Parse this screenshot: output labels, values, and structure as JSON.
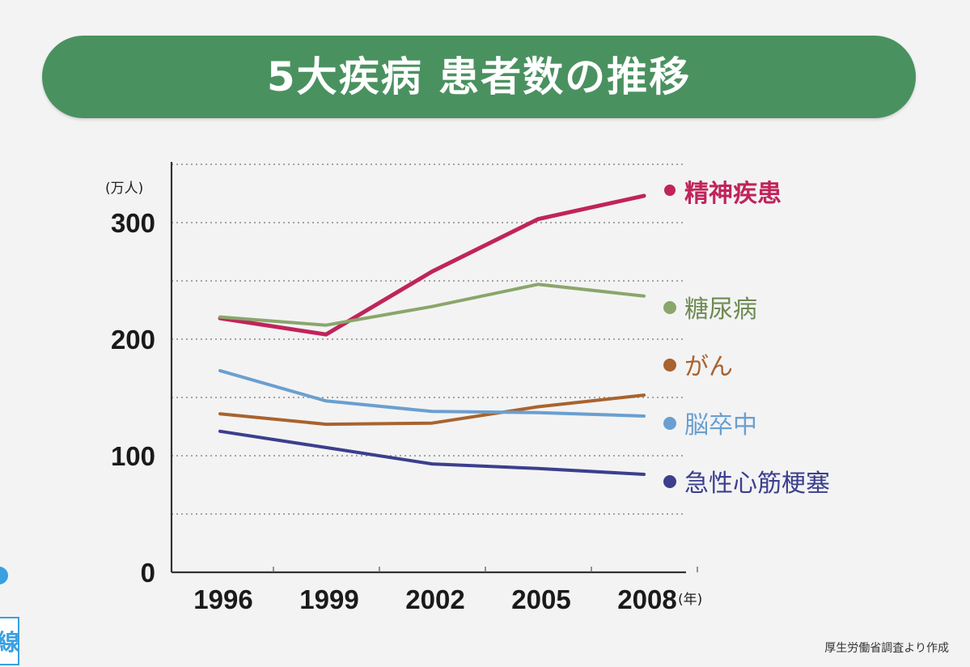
{
  "title": "5大疾病 患者数の推移",
  "source": "厚生労働省調査より作成",
  "edge_box_char": "線",
  "chart_data": {
    "type": "line",
    "title": "5大疾病 患者数の推移",
    "y_unit": "(万人)",
    "x_unit": "(年)",
    "x": [
      "1996",
      "1999",
      "2002",
      "2005",
      "2008"
    ],
    "y_ticks": [
      "0",
      "100",
      "200",
      "300"
    ],
    "ylim": [
      0,
      350
    ],
    "grid": "dotted horizontal every 50",
    "legend_position": "right, beside line ends",
    "series": [
      {
        "name": "精神疾患",
        "color": "#c0245a",
        "values": [
          218,
          204,
          258,
          303,
          323
        ]
      },
      {
        "name": "糖尿病",
        "color": "#8aa66b",
        "values": [
          219,
          212,
          228,
          247,
          237
        ]
      },
      {
        "name": "がん",
        "color": "#a8632f",
        "values": [
          136,
          127,
          128,
          142,
          152
        ]
      },
      {
        "name": "脳卒中",
        "color": "#6a9fd0",
        "values": [
          173,
          147,
          138,
          137,
          134
        ]
      },
      {
        "name": "急性心筋梗塞",
        "color": "#3b3f8c",
        "values": [
          121,
          107,
          93,
          89,
          84
        ]
      }
    ]
  }
}
